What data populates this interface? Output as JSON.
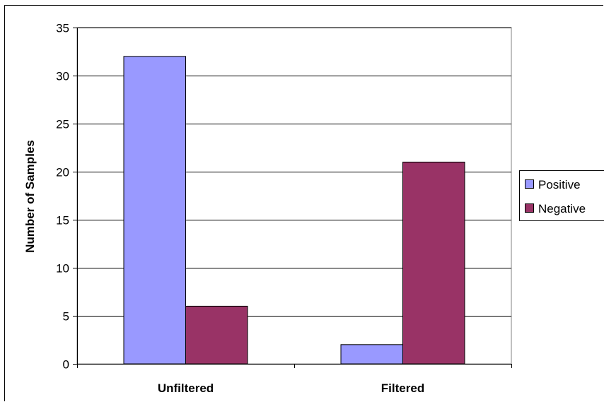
{
  "chart_data": {
    "type": "bar",
    "title": "",
    "xlabel": "",
    "ylabel": "Number of Samples",
    "categories": [
      "Unfiltered",
      "Filtered"
    ],
    "series": [
      {
        "name": "Positive",
        "values": [
          32,
          2
        ],
        "color": "#9999ff"
      },
      {
        "name": "Negative",
        "values": [
          6,
          21
        ],
        "color": "#993366"
      }
    ],
    "ylim": [
      0,
      35
    ],
    "yticks": [
      "0",
      "5",
      "10",
      "15",
      "20",
      "25",
      "30",
      "35"
    ],
    "grid": true,
    "legend_position": "right"
  }
}
